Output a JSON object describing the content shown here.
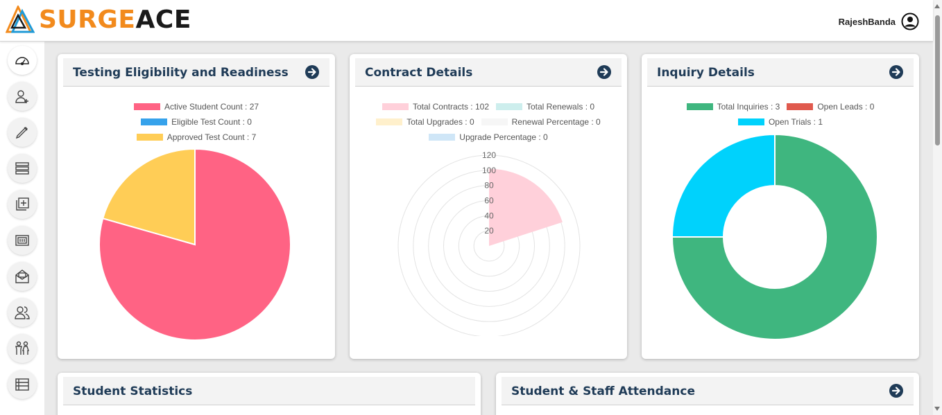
{
  "header": {
    "logo_part1": "SURGE",
    "logo_part2": "ACE",
    "user_name": "RajeshBanda",
    "user_icon": "user-circle-icon"
  },
  "sidebar": {
    "items": [
      {
        "name": "dashboard",
        "icon": "speedometer-icon",
        "active": true
      },
      {
        "name": "add-user",
        "icon": "user-plus-icon"
      },
      {
        "name": "edit",
        "icon": "pencil-icon"
      },
      {
        "name": "list",
        "icon": "list-rows-icon"
      },
      {
        "name": "library-add",
        "icon": "library-add-icon"
      },
      {
        "name": "money",
        "icon": "money-icon"
      },
      {
        "name": "mail",
        "icon": "mail-open-icon"
      },
      {
        "name": "users",
        "icon": "users-icon"
      },
      {
        "name": "family",
        "icon": "family-icon"
      },
      {
        "name": "table",
        "icon": "table-list-icon"
      }
    ]
  },
  "cards": {
    "testing": {
      "title": "Testing Eligibility and Readiness"
    },
    "contract": {
      "title": "Contract Details"
    },
    "inquiry": {
      "title": "Inquiry Details"
    },
    "student_stats": {
      "title": "Student Statistics"
    },
    "attendance": {
      "title": "Student & Staff Attendance"
    }
  },
  "colors": {
    "accent": "#f28a1c",
    "title": "#1f3b57",
    "pink": "#ff6384",
    "blue": "#36a2eb",
    "yellow": "#ffcd56",
    "green": "#3fb67f",
    "cyan": "#00d2fc",
    "red": "#e05a4e"
  },
  "chart_data": [
    {
      "type": "pie",
      "title": "Testing Eligibility and Readiness",
      "categories": [
        "Active Student Count",
        "Eligible Test Count",
        "Approved Test Count"
      ],
      "values": [
        27,
        0,
        7
      ],
      "legend_labels": [
        "Active Student Count : 27",
        "Eligible Test Count : 0",
        "Approved Test Count : 7"
      ],
      "colors": [
        "#ff6384",
        "#36a2eb",
        "#ffcd56"
      ],
      "legend": "top"
    },
    {
      "type": "polarArea",
      "title": "Contract Details",
      "categories": [
        "Total Contracts",
        "Total Renewals",
        "Total Upgrades",
        "Renewal Percentage",
        "Upgrade Percentage"
      ],
      "values": [
        102,
        0,
        0,
        0,
        0
      ],
      "legend_labels": [
        "Total Contracts : 102",
        "Total Renewals : 0",
        "Total Upgrades : 0",
        "Renewal Percentage : 0",
        "Upgrade Percentage : 0"
      ],
      "colors": [
        "#ffd0da",
        "#cdeeed",
        "#fff0cc",
        "#f6f6f6",
        "#cfe6f7"
      ],
      "r_ticks": [
        "20",
        "40",
        "60",
        "80",
        "100",
        "120"
      ],
      "rlim": [
        0,
        120
      ],
      "legend": "top"
    },
    {
      "type": "doughnut",
      "title": "Inquiry Details",
      "categories": [
        "Total Inquiries",
        "Open Leads",
        "Open Trials"
      ],
      "values": [
        3,
        0,
        1
      ],
      "legend_labels": [
        "Total Inquiries : 3",
        "Open Leads : 0",
        "Open Trials : 1"
      ],
      "colors": [
        "#3fb67f",
        "#e05a4e",
        "#00d2fc"
      ],
      "legend": "top"
    }
  ]
}
